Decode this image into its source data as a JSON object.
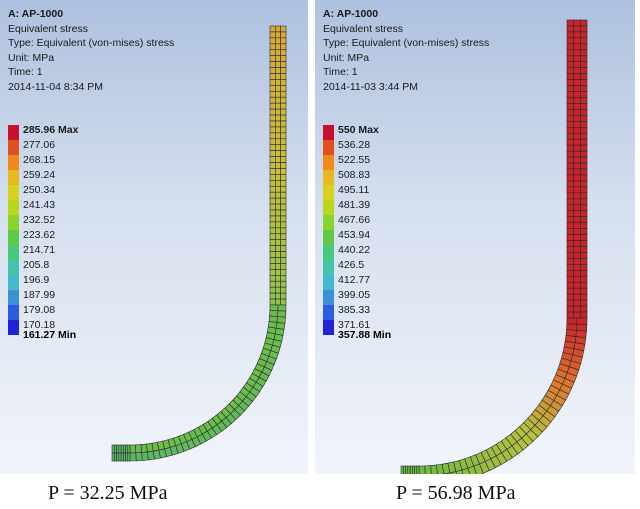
{
  "left": {
    "model": "A: AP-1000",
    "result": "Equivalent stress",
    "type": "Type: Equivalent (von-mises) stress",
    "unit": "Unit: MPa",
    "time": "Time: 1",
    "date": "2014-11-04 8:34 PM",
    "legend_max": "285.96 Max",
    "legend_values": [
      "277.06",
      "268.15",
      "259.24",
      "250.34",
      "241.43",
      "232.52",
      "223.62",
      "214.71",
      "205.8",
      "196.9",
      "187.99",
      "179.08",
      "170.18"
    ],
    "legend_min": "161.27 Min",
    "caption": "P = 32.25 MPa"
  },
  "right": {
    "model": "A: AP-1000",
    "result": "Equivalent stress",
    "type": "Type: Equivalent (von-mises) stress",
    "unit": "Unit: MPa",
    "time": "Time: 1",
    "date": "2014-11-03 3:44 PM",
    "legend_max": "550 Max",
    "legend_values": [
      "536.28",
      "522.55",
      "508.83",
      "495.11",
      "481.39",
      "467.66",
      "453.94",
      "440.22",
      "426.5",
      "412.77",
      "399.05",
      "385.33",
      "371.61"
    ],
    "legend_min": "357.88 Min",
    "caption": "P = 56.98 MPa"
  },
  "legend_colors": [
    "#c8102e",
    "#e0501c",
    "#f08a1c",
    "#e8b820",
    "#d8d21e",
    "#b8d820",
    "#8cd22c",
    "#60c84a",
    "#48c87a",
    "#44c4a8",
    "#44b8cc",
    "#3c90d8",
    "#2c5ce0",
    "#1e24d8"
  ],
  "mesh_colors": {
    "left": {
      "straight_top": "#d8a83a",
      "straight_mid": "#c8c040",
      "straight_bottom": "#8cc44a",
      "bend": "#6cbc4c",
      "foot": "#5cb868"
    },
    "right": {
      "straight": "#c8242a",
      "bend_top": "#e07430",
      "bend_mid": "#b8c040",
      "foot": "#6cb848"
    }
  }
}
